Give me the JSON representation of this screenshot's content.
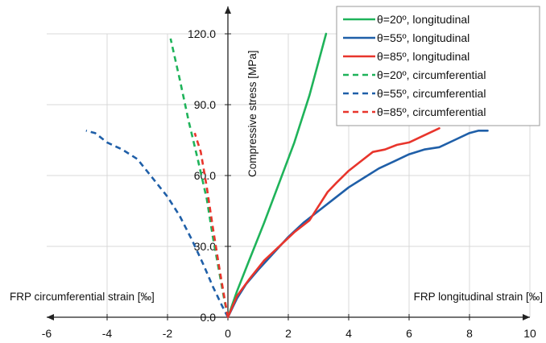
{
  "chart_data": {
    "type": "line",
    "xlim": [
      -6,
      10
    ],
    "ylim": [
      0,
      120
    ],
    "x_ticks": [
      "-6",
      "-4",
      "-2",
      "0",
      "2",
      "4",
      "6",
      "8",
      "10"
    ],
    "y_ticks": [
      "0.0",
      "30.0",
      "60.0",
      "90.0",
      "120.0"
    ],
    "grid": true,
    "legend_position": "top-right",
    "ylabel": "Compressive stress [MPa]",
    "xlabel_left": "FRP circumferential strain [‰]",
    "xlabel_right": "FRP longitudinal strain [‰]",
    "series": [
      {
        "name": "θ=20º, longitudinal",
        "color": "#1fb35a",
        "dash": false,
        "x": [
          0,
          0.3,
          0.7,
          1.2,
          1.7,
          2.2,
          2.7,
          3.25
        ],
        "y": [
          0,
          11,
          24,
          40,
          57,
          74,
          94,
          120
        ]
      },
      {
        "name": "θ=55º, longitudinal",
        "color": "#1f5fa8",
        "dash": false,
        "x": [
          0,
          0.3,
          0.6,
          1.0,
          1.5,
          2.0,
          2.5,
          3.0,
          3.5,
          4.0,
          4.5,
          5.0,
          5.5,
          6.0,
          6.5,
          7.0,
          7.5,
          8.0,
          8.3,
          8.6
        ],
        "y": [
          0,
          8,
          14,
          20,
          27,
          34,
          40,
          45,
          50,
          55,
          59,
          63,
          66,
          69,
          71,
          72,
          75,
          78,
          79,
          79
        ]
      },
      {
        "name": "θ=85º, longitudinal",
        "color": "#e8352c",
        "dash": false,
        "x": [
          0,
          0.3,
          0.7,
          1.2,
          1.7,
          2.2,
          2.7,
          3.0,
          3.3,
          3.6,
          4.0,
          4.4,
          4.8,
          5.2,
          5.6,
          6.0,
          6.5,
          7.0
        ],
        "y": [
          0,
          9,
          16,
          24,
          30,
          36,
          41,
          47,
          53,
          57,
          62,
          66,
          70,
          71,
          73,
          74,
          77,
          80
        ]
      },
      {
        "name": "θ=20º, circumferential",
        "color": "#1fb35a",
        "dash": true,
        "x": [
          0,
          -0.1,
          -0.3,
          -0.5,
          -0.7,
          -1.0,
          -1.3,
          -1.6,
          -1.9
        ],
        "y": [
          0,
          6,
          20,
          34,
          50,
          67,
          83,
          101,
          118
        ]
      },
      {
        "name": "θ=55º, circumferential",
        "color": "#1f5fa8",
        "dash": true,
        "x": [
          0,
          -0.2,
          -0.5,
          -0.8,
          -1.2,
          -1.6,
          -2.0,
          -2.5,
          -3.0,
          -3.5,
          -4.0,
          -4.4,
          -4.7
        ],
        "y": [
          0,
          5,
          13,
          22,
          33,
          43,
          51,
          59,
          67,
          71,
          74,
          78,
          79
        ]
      },
      {
        "name": "θ=85º, circumferential",
        "color": "#e8352c",
        "dash": true,
        "x": [
          0,
          -0.1,
          -0.3,
          -0.5,
          -0.7,
          -0.9,
          -1.1
        ],
        "y": [
          0,
          7,
          22,
          38,
          55,
          70,
          78
        ]
      }
    ]
  }
}
